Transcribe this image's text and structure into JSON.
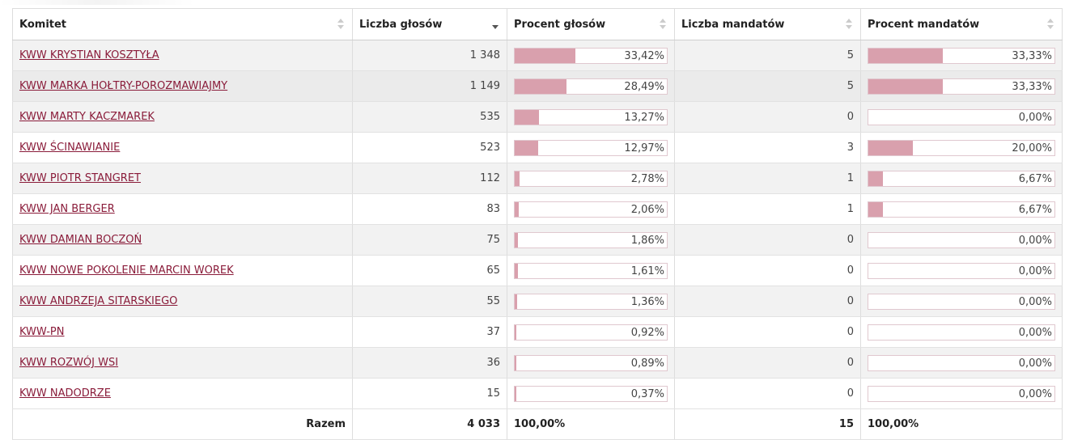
{
  "table": {
    "headers": {
      "komitet": "Komitet",
      "liczba_glosow": "Liczba głosów",
      "procent_glosow": "Procent głosów",
      "liczba_mandatow": "Liczba mandatów",
      "procent_mandatow": "Procent mandatów"
    },
    "sorted_column": "liczba_glosow",
    "sort_direction": "desc",
    "rows": [
      {
        "name": "KWW KRYSTIAN KOSZTYŁA",
        "votes": "1 348",
        "votes_pct": 33.42,
        "votes_pct_label": "33,42%",
        "seats": "5",
        "seats_pct": 33.33,
        "seats_pct_label": "33,33%"
      },
      {
        "name": "KWW MARKA HOŁTRY-POROZMAWIAJMY",
        "votes": "1 149",
        "votes_pct": 28.49,
        "votes_pct_label": "28,49%",
        "seats": "5",
        "seats_pct": 33.33,
        "seats_pct_label": "33,33%"
      },
      {
        "name": "KWW MARTY KACZMAREK",
        "votes": "535",
        "votes_pct": 13.27,
        "votes_pct_label": "13,27%",
        "seats": "0",
        "seats_pct": 0,
        "seats_pct_label": "0,00%"
      },
      {
        "name": "KWW ŚCINAWIANIE",
        "votes": "523",
        "votes_pct": 12.97,
        "votes_pct_label": "12,97%",
        "seats": "3",
        "seats_pct": 20.0,
        "seats_pct_label": "20,00%"
      },
      {
        "name": "KWW PIOTR STANGRET",
        "votes": "112",
        "votes_pct": 2.78,
        "votes_pct_label": "2,78%",
        "seats": "1",
        "seats_pct": 6.67,
        "seats_pct_label": "6,67%"
      },
      {
        "name": "KWW JAN BERGER",
        "votes": "83",
        "votes_pct": 2.06,
        "votes_pct_label": "2,06%",
        "seats": "1",
        "seats_pct": 6.67,
        "seats_pct_label": "6,67%"
      },
      {
        "name": "KWW DAMIAN BOCZOŃ",
        "votes": "75",
        "votes_pct": 1.86,
        "votes_pct_label": "1,86%",
        "seats": "0",
        "seats_pct": 0,
        "seats_pct_label": "0,00%"
      },
      {
        "name": "KWW NOWE POKOLENIE MARCIN WOREK",
        "votes": "65",
        "votes_pct": 1.61,
        "votes_pct_label": "1,61%",
        "seats": "0",
        "seats_pct": 0,
        "seats_pct_label": "0,00%"
      },
      {
        "name": "KWW ANDRZEJA SITARSKIEGO",
        "votes": "55",
        "votes_pct": 1.36,
        "votes_pct_label": "1,36%",
        "seats": "0",
        "seats_pct": 0,
        "seats_pct_label": "0,00%"
      },
      {
        "name": "KWW-PN",
        "votes": "37",
        "votes_pct": 0.92,
        "votes_pct_label": "0,92%",
        "seats": "0",
        "seats_pct": 0,
        "seats_pct_label": "0,00%"
      },
      {
        "name": "KWW ROZWÓJ WSI",
        "votes": "36",
        "votes_pct": 0.89,
        "votes_pct_label": "0,89%",
        "seats": "0",
        "seats_pct": 0,
        "seats_pct_label": "0,00%"
      },
      {
        "name": "KWW NADODRZE",
        "votes": "15",
        "votes_pct": 0.37,
        "votes_pct_label": "0,37%",
        "seats": "0",
        "seats_pct": 0,
        "seats_pct_label": "0,00%"
      }
    ],
    "footer": {
      "label": "Razem",
      "votes_total": "4 033",
      "votes_pct_total": "100,00%",
      "seats_total": "15",
      "seats_pct_total": "100,00%"
    },
    "colors": {
      "link": "#8a1c3a",
      "bar_fill": "#d9a0ad",
      "bar_border": "#e0c8cf",
      "row_odd": "#f2f2f2",
      "row_highlight": "#ebebeb"
    }
  }
}
